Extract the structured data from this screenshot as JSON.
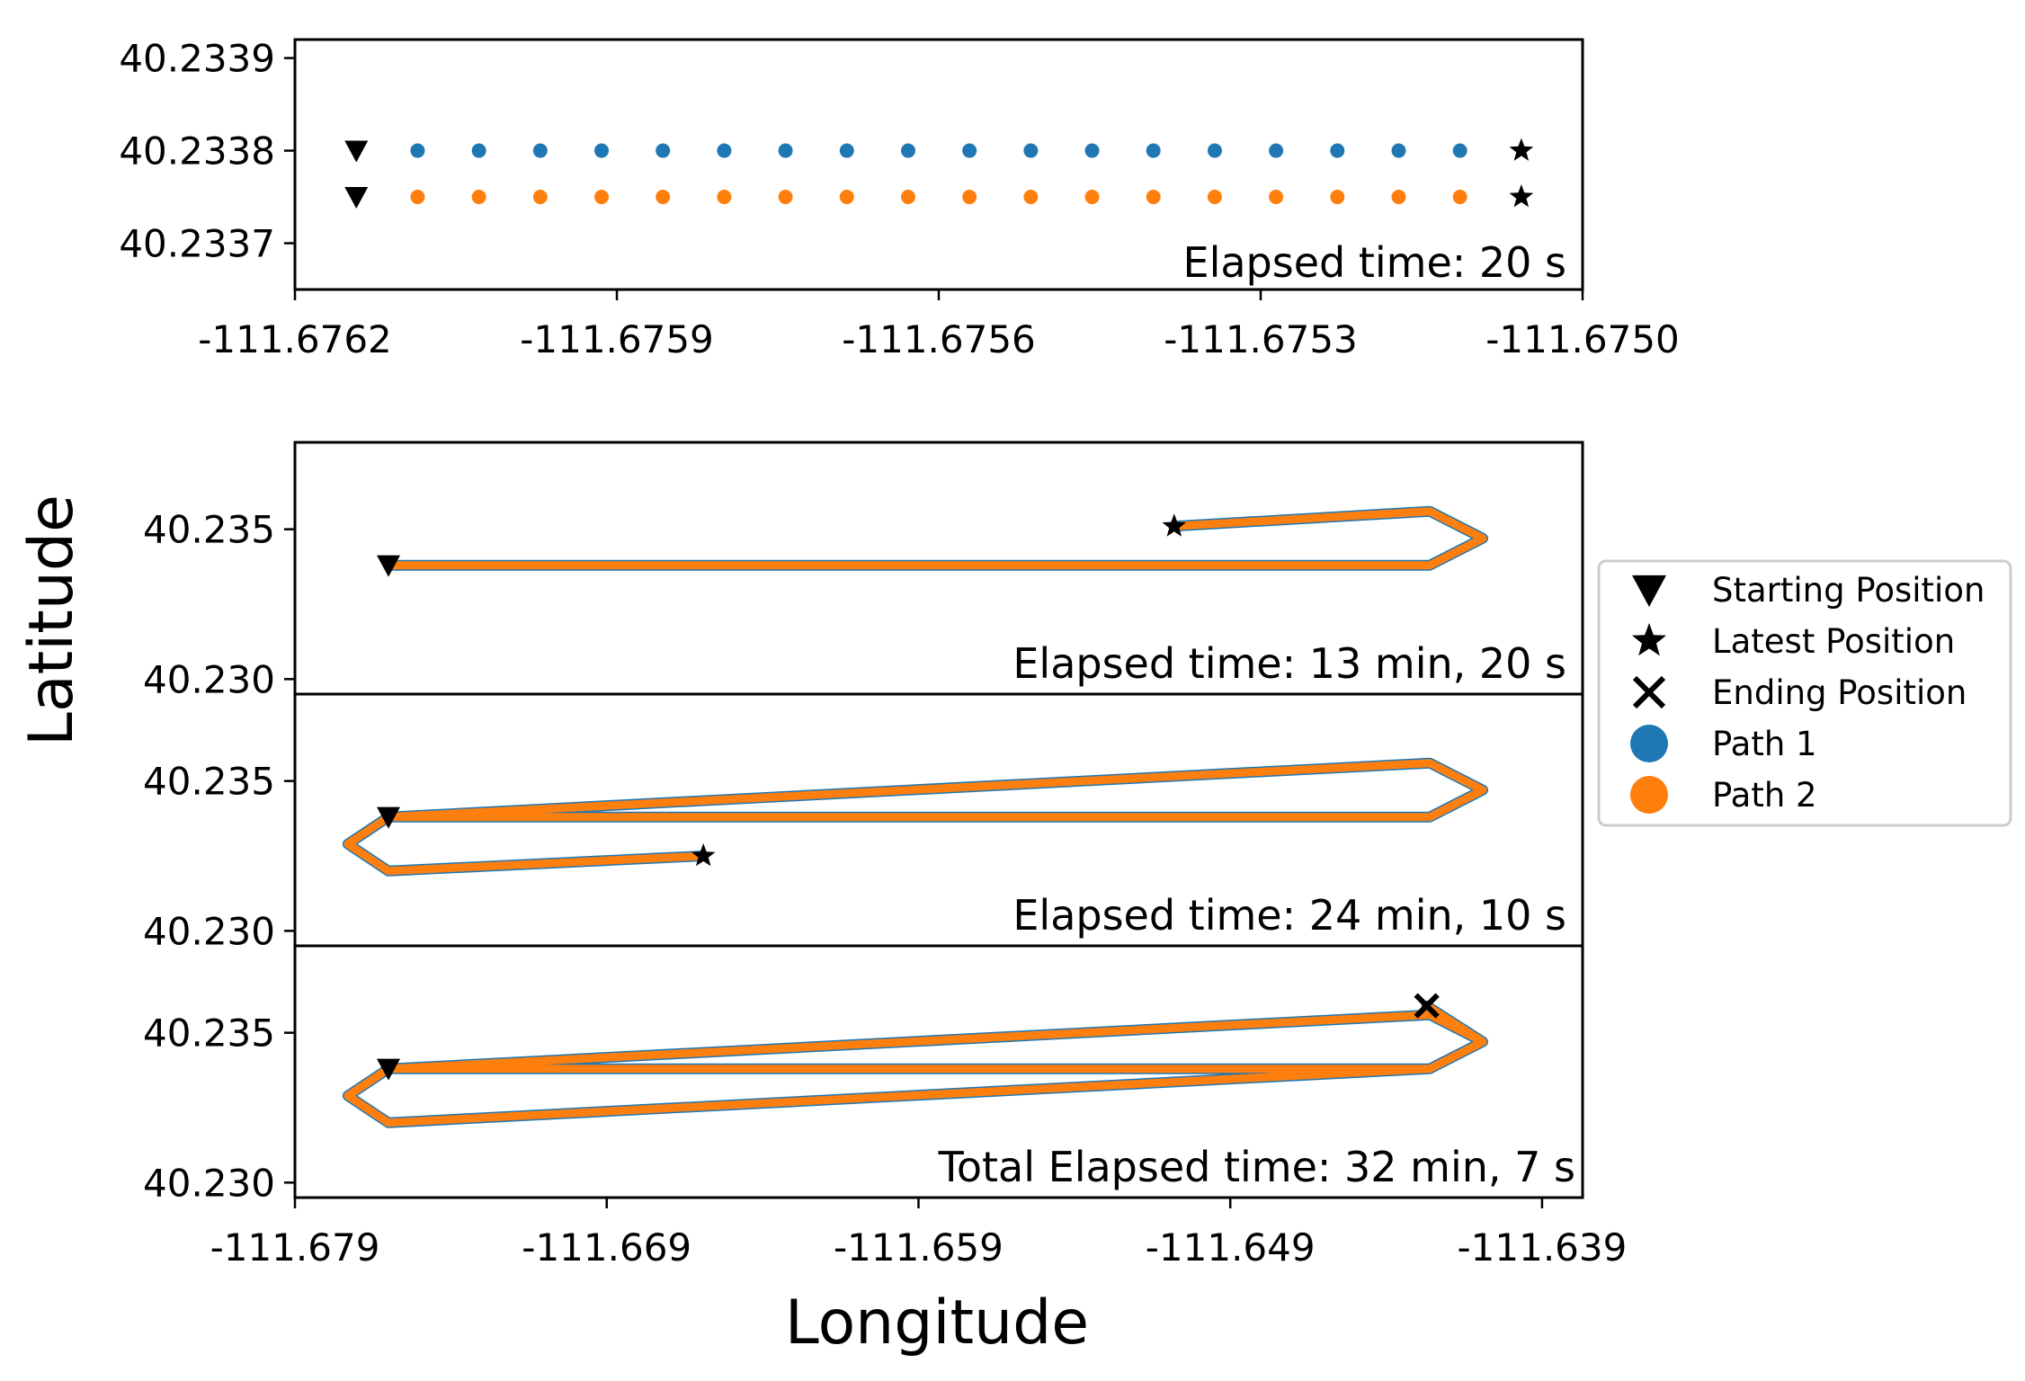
{
  "chart_data": [
    {
      "type": "scatter",
      "panel": "top",
      "annotation": "Elapsed time: 20 s",
      "xlim": [
        -111.6762,
        -111.675
      ],
      "ylim": [
        40.23365,
        40.23392
      ],
      "xticks": [
        "-111.6762",
        "-111.6759",
        "-111.6756",
        "-111.6753",
        "-111.6750"
      ],
      "yticks": [
        "40.2339",
        "40.2338",
        "40.2337"
      ],
      "series": [
        {
          "name": "Path 1",
          "y": 40.2338,
          "x_start": -111.6761428,
          "x_end": -111.6750571,
          "n_points": 20
        },
        {
          "name": "Path 2",
          "y": 40.23375,
          "x_start": -111.6761428,
          "x_end": -111.6750571,
          "n_points": 20
        }
      ],
      "markers": [
        {
          "kind": "start",
          "x": -111.6761428,
          "y": 40.2338
        },
        {
          "kind": "start",
          "x": -111.6761428,
          "y": 40.23375
        },
        {
          "kind": "latest",
          "x": -111.6750571,
          "y": 40.2338
        },
        {
          "kind": "latest",
          "x": -111.6750571,
          "y": 40.23375
        }
      ]
    },
    {
      "type": "line",
      "panel": "bottom-1",
      "annotation": "Elapsed time: 13 min, 20 s",
      "xlim": [
        -111.679,
        -111.6377
      ],
      "ylim": [
        40.2295,
        40.2379
      ],
      "yticks": [
        "40.235",
        "40.230"
      ],
      "path": [
        [
          -111.676,
          40.2338
        ],
        [
          -111.6426,
          40.2338
        ],
        [
          -111.6409,
          40.2347
        ],
        [
          -111.6426,
          40.2356
        ],
        [
          -111.6508,
          40.2351
        ]
      ],
      "markers": [
        {
          "kind": "start",
          "x": -111.676,
          "y": 40.2338
        },
        {
          "kind": "latest",
          "x": -111.6508,
          "y": 40.2351
        }
      ]
    },
    {
      "type": "line",
      "panel": "bottom-2",
      "annotation": "Elapsed time: 24 min, 10 s",
      "xlim": [
        -111.679,
        -111.6377
      ],
      "ylim": [
        40.2295,
        40.2379
      ],
      "yticks": [
        "40.235",
        "40.230"
      ],
      "path": [
        [
          -111.676,
          40.2338
        ],
        [
          -111.6426,
          40.2338
        ],
        [
          -111.6409,
          40.2347
        ],
        [
          -111.6426,
          40.2356
        ],
        [
          -111.676,
          40.2338
        ],
        [
          -111.6773,
          40.2329
        ],
        [
          -111.676,
          40.232
        ],
        [
          -111.6659,
          40.2325
        ]
      ],
      "markers": [
        {
          "kind": "start",
          "x": -111.676,
          "y": 40.2338
        },
        {
          "kind": "latest",
          "x": -111.6659,
          "y": 40.2325
        }
      ]
    },
    {
      "type": "line",
      "panel": "bottom-3",
      "annotation": "Total Elapsed time: 32 min, 7 s",
      "xlim": [
        -111.679,
        -111.6377
      ],
      "ylim": [
        40.2295,
        40.2379
      ],
      "xticks": [
        "-111.679",
        "-111.669",
        "-111.659",
        "-111.649",
        "-111.639"
      ],
      "yticks": [
        "40.235",
        "40.230"
      ],
      "path": [
        [
          -111.676,
          40.2338
        ],
        [
          -111.6426,
          40.2338
        ],
        [
          -111.6409,
          40.2347
        ],
        [
          -111.6426,
          40.2356
        ],
        [
          -111.676,
          40.2338
        ],
        [
          -111.6773,
          40.2329
        ],
        [
          -111.676,
          40.232
        ],
        [
          -111.6426,
          40.2338
        ],
        [
          -111.6409,
          40.2347
        ],
        [
          -111.6427,
          40.2359
        ]
      ],
      "markers": [
        {
          "kind": "start",
          "x": -111.676,
          "y": 40.2338
        },
        {
          "kind": "end",
          "x": -111.6427,
          "y": 40.2359
        }
      ]
    }
  ],
  "axes": {
    "xlabel": "Longitude",
    "ylabel": "Latitude"
  },
  "legend": {
    "placement": "right",
    "items": [
      {
        "label": "Starting Position",
        "marker": "triangle-down"
      },
      {
        "label": "Latest Position",
        "marker": "star"
      },
      {
        "label": "Ending Position",
        "marker": "x"
      },
      {
        "label": "Path 1",
        "marker": "circle",
        "color": "#1f77b4"
      },
      {
        "label": "Path 2",
        "marker": "circle",
        "color": "#ff7f0e"
      }
    ]
  },
  "colors": {
    "path1": "#1f77b4",
    "path2": "#ff7f0e"
  }
}
